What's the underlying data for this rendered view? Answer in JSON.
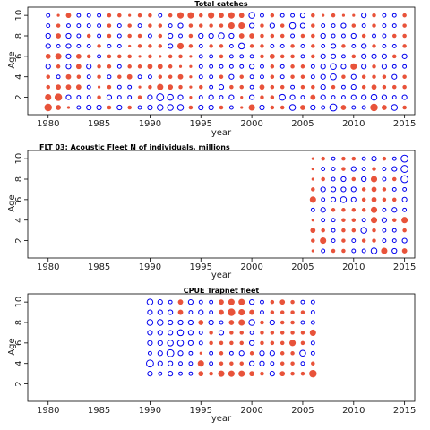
{
  "chart_data": [
    {
      "type": "scatter",
      "title": "Total catches",
      "xlabel": "year",
      "ylabel": "Age",
      "xlim": [
        1978,
        2016
      ],
      "ylim": [
        0.3,
        10.8
      ],
      "xticks": [
        1980,
        1985,
        1990,
        1995,
        2000,
        2005,
        2010,
        2015
      ],
      "yticks": [
        2,
        4,
        6,
        8,
        10
      ],
      "grid": false,
      "years": [
        1980,
        1981,
        1982,
        1983,
        1984,
        1985,
        1986,
        1987,
        1988,
        1989,
        1990,
        1991,
        1992,
        1993,
        1994,
        1995,
        1996,
        1997,
        1998,
        1999,
        2000,
        2001,
        2002,
        2003,
        2004,
        2005,
        2006,
        2007,
        2008,
        2009,
        2010,
        2011,
        2012,
        2013,
        2014,
        2015
      ],
      "ages": [
        1,
        2,
        3,
        4,
        5,
        6,
        7,
        8,
        9,
        10
      ],
      "residuals": [
        [
          0.6,
          0.4,
          0.2,
          -0.3,
          -0.4,
          -0.4,
          0.3,
          -0.4,
          0.3,
          -0.3,
          -0.4,
          -0.5,
          -0.5,
          -0.5,
          0.3,
          -0.4,
          -0.4,
          0.3,
          -0.3,
          0.2,
          0.5,
          -0.4,
          0.3,
          0.3,
          -0.5,
          0.4,
          -0.4,
          -0.3,
          -0.6,
          0.4,
          -0.3,
          -0.3,
          0.6,
          0.4,
          -0.5,
          0.3
        ],
        [
          0.5,
          0.6,
          -0.4,
          -0.3,
          -0.3,
          0.3,
          -0.4,
          -0.3,
          -0.3,
          0.3,
          -0.4,
          -0.6,
          -0.5,
          -0.4,
          0.2,
          -0.3,
          -0.4,
          -0.3,
          -0.4,
          0.2,
          -0.4,
          0.3,
          0.3,
          -0.5,
          -0.4,
          -0.3,
          0.4,
          -0.4,
          -0.3,
          -0.3,
          -0.4,
          -0.4,
          -0.5,
          -0.4,
          -0.3,
          -0.4
        ],
        [
          0.3,
          0.4,
          0.4,
          0.4,
          -0.3,
          0.2,
          0.3,
          -0.3,
          -0.3,
          0.2,
          0.3,
          0.5,
          0.4,
          0.3,
          0.2,
          0.3,
          -0.3,
          -0.4,
          0.3,
          0.3,
          -0.3,
          0.4,
          0.3,
          0.3,
          -0.3,
          0.3,
          0.3,
          -0.4,
          0.3,
          -0.3,
          -0.4,
          0.3,
          0.4,
          0.3,
          0.3,
          0.3
        ],
        [
          0.3,
          -0.3,
          0.4,
          0.3,
          -0.3,
          0.3,
          -0.3,
          0.3,
          0.4,
          -0.3,
          -0.3,
          0.3,
          0.3,
          0.4,
          0.2,
          -0.3,
          -0.3,
          0.3,
          -0.4,
          0.3,
          -0.3,
          -0.3,
          0.3,
          -0.3,
          0.3,
          0.3,
          -0.3,
          -0.4,
          -0.5,
          0.3,
          -0.4,
          0.3,
          0.3,
          0.3,
          -0.4,
          0.3
        ],
        [
          -0.4,
          0.3,
          -0.4,
          0.4,
          -0.4,
          0.3,
          0.3,
          -0.3,
          0.3,
          0.3,
          0.4,
          0.4,
          0.3,
          0.2,
          0.2,
          -0.3,
          -0.3,
          -0.3,
          -0.3,
          -0.3,
          -0.4,
          -0.3,
          0.3,
          -0.3,
          0.3,
          0.3,
          -0.3,
          -0.4,
          -0.5,
          -0.4,
          0.5,
          -0.4,
          0.3,
          -0.4,
          -0.3,
          -0.3
        ],
        [
          0.4,
          0.5,
          -0.4,
          0.4,
          0.3,
          -0.3,
          0.3,
          0.3,
          0.3,
          0.2,
          0.3,
          0.2,
          0.3,
          0.3,
          0.2,
          -0.3,
          -0.3,
          0.3,
          -0.3,
          -0.3,
          -0.3,
          0.3,
          0.4,
          0.3,
          0.3,
          -0.3,
          0.3,
          -0.4,
          -0.4,
          -0.3,
          0.3,
          -0.4,
          -0.4,
          -0.4,
          0.3,
          -0.4
        ],
        [
          -0.4,
          -0.3,
          -0.4,
          -0.3,
          -0.3,
          0.3,
          -0.3,
          -0.3,
          0.2,
          0.3,
          0.3,
          0.3,
          -0.4,
          0.5,
          0.3,
          -0.3,
          0.3,
          0.3,
          -0.3,
          -0.5,
          0.3,
          0.3,
          -0.3,
          -0.3,
          0.3,
          -0.3,
          0.3,
          -0.3,
          -0.4,
          0.3,
          -0.3,
          -0.4,
          0.3,
          -0.3,
          -0.3,
          0.3
        ],
        [
          -0.4,
          0.4,
          -0.4,
          -0.3,
          0.3,
          -0.3,
          0.3,
          -0.3,
          0.3,
          0.3,
          -0.3,
          0.3,
          -0.4,
          -0.3,
          0.3,
          -0.4,
          -0.4,
          -0.5,
          -0.4,
          0.4,
          0.4,
          0.3,
          0.3,
          0.3,
          -0.3,
          0.3,
          0.3,
          -0.4,
          -0.3,
          -0.3,
          -0.4,
          0.3,
          -0.3,
          -0.3,
          0.3,
          0.3
        ],
        [
          -0.3,
          0.3,
          -0.3,
          -0.3,
          -0.3,
          -0.3,
          0.3,
          -0.3,
          0.3,
          -0.3,
          0.3,
          0.3,
          -0.3,
          -0.4,
          0.3,
          0.3,
          0.3,
          0.3,
          0.5,
          0.5,
          -0.4,
          0.3,
          -0.4,
          0.3,
          -0.5,
          -0.4,
          0.3,
          -0.3,
          -0.3,
          -0.4,
          0.3,
          -0.3,
          0.3,
          -0.3,
          -0.3,
          0.3
        ],
        [
          -0.3,
          0.2,
          0.4,
          -0.3,
          -0.3,
          -0.3,
          0.3,
          0.3,
          0.2,
          0.3,
          0.3,
          -0.3,
          0.3,
          0.5,
          0.5,
          0.3,
          0.5,
          0.4,
          0.5,
          0.4,
          -0.5,
          -0.3,
          0.3,
          -0.3,
          -0.3,
          -0.4,
          0.3,
          0.2,
          0.3,
          0.2,
          0.2,
          -0.4,
          0.3,
          -0.3,
          -0.3,
          0.3
        ]
      ]
    },
    {
      "type": "scatter",
      "title": "FLT 03: Acoustic Fleet   N of individuals, millions",
      "xlabel": "year",
      "ylabel": "Age",
      "xlim": [
        1978,
        2016
      ],
      "ylim": [
        0.3,
        10.8
      ],
      "xticks": [
        1980,
        1985,
        1990,
        1995,
        2000,
        2005,
        2010,
        2015
      ],
      "yticks": [
        2,
        4,
        6,
        8,
        10
      ],
      "grid": false,
      "years": [
        2006,
        2007,
        2008,
        2009,
        2010,
        2011,
        2012,
        2013,
        2014,
        2015
      ],
      "ages": [
        1,
        2,
        3,
        4,
        5,
        6,
        7,
        8,
        9,
        10
      ],
      "residuals": [
        [
          0.2,
          -0.3,
          0.3,
          0.3,
          -0.3,
          -0.3,
          -0.5,
          0.5,
          -0.4,
          0.4
        ],
        [
          0.3,
          0.5,
          -0.3,
          0.3,
          -0.3,
          0.3,
          0.3,
          -0.3,
          -0.3,
          -0.4
        ],
        [
          0.4,
          0.3,
          -0.3,
          0.3,
          0.3,
          -0.5,
          0.3,
          -0.3,
          -0.3,
          0.3
        ],
        [
          0.2,
          -0.3,
          -0.3,
          0.3,
          0.3,
          -0.3,
          0.5,
          -0.4,
          0.3,
          0.5
        ],
        [
          -0.3,
          -0.4,
          0.3,
          0.3,
          0.3,
          0.3,
          0.5,
          -0.3,
          -0.4,
          -0.3
        ],
        [
          0.5,
          -0.3,
          -0.4,
          -0.5,
          -0.4,
          0.3,
          0.4,
          0.3,
          0.3,
          -0.4
        ],
        [
          0.3,
          -0.4,
          -0.4,
          -0.4,
          -0.4,
          0.3,
          0.4,
          0.3,
          -0.3,
          -0.3
        ],
        [
          0.2,
          0.3,
          -0.3,
          -0.4,
          0.3,
          -0.4,
          0.5,
          -0.3,
          0.3,
          -0.6
        ],
        [
          0.2,
          -0.3,
          -0.3,
          0.3,
          -0.4,
          -0.3,
          0.3,
          -0.3,
          -0.4,
          -0.6
        ],
        [
          0.2,
          0.3,
          -0.3,
          0.3,
          0.3,
          -0.3,
          -0.4,
          0.3,
          -0.3,
          -0.6
        ]
      ]
    },
    {
      "type": "scatter",
      "title": "CPUE Trapnet fleet",
      "xlabel": "year",
      "ylabel": "Age",
      "xlim": [
        1978,
        2016
      ],
      "ylim": [
        0.3,
        10.8
      ],
      "xticks": [
        1980,
        1985,
        1990,
        1995,
        2000,
        2005,
        2010,
        2015
      ],
      "yticks": [
        2,
        4,
        6,
        8,
        10
      ],
      "grid": false,
      "years": [
        1990,
        1991,
        1992,
        1993,
        1994,
        1995,
        1996,
        1997,
        1998,
        1999,
        2000,
        2001,
        2002,
        2003,
        2004,
        2005,
        2006
      ],
      "ages": [
        3,
        4,
        5,
        6,
        7,
        8,
        9,
        10
      ],
      "residuals": [
        [
          -0.4,
          -0.3,
          -0.4,
          -0.3,
          -0.3,
          0.4,
          0.3,
          0.5,
          0.5,
          0.5,
          0.4,
          0.3,
          -0.4,
          0.4,
          0.3,
          0.3,
          0.6
        ],
        [
          -0.6,
          -0.4,
          -0.4,
          -0.3,
          -0.3,
          0.5,
          -0.3,
          0.3,
          0.3,
          0.3,
          -0.4,
          -0.4,
          -0.3,
          0.3,
          0.3,
          -0.3,
          0.3
        ],
        [
          -0.3,
          -0.4,
          -0.6,
          -0.4,
          -0.3,
          0.2,
          -0.3,
          0.3,
          -0.3,
          -0.4,
          0.3,
          -0.4,
          -0.4,
          0.3,
          0.3,
          -0.5,
          -0.3
        ],
        [
          -0.4,
          -0.4,
          -0.5,
          -0.5,
          -0.4,
          -0.3,
          0.3,
          0.3,
          0.3,
          0.3,
          -0.4,
          0.3,
          0.3,
          0.3,
          0.5,
          0.3,
          -0.3
        ],
        [
          -0.4,
          -0.4,
          -0.4,
          -0.5,
          -0.4,
          -0.3,
          0.3,
          -0.4,
          0.3,
          0.3,
          -0.3,
          0.3,
          0.3,
          0.3,
          0.3,
          0.3,
          0.5
        ],
        [
          -0.5,
          -0.5,
          -0.4,
          -0.4,
          -0.4,
          0.4,
          -0.4,
          -0.3,
          0.4,
          0.5,
          -0.5,
          0.3,
          -0.4,
          0.3,
          0.3,
          -0.3,
          -0.3
        ],
        [
          -0.4,
          -0.4,
          -0.4,
          0.4,
          -0.3,
          -0.4,
          -0.3,
          0.4,
          0.6,
          0.5,
          0.4,
          -0.3,
          0.3,
          0.3,
          0.3,
          0.3,
          -0.3
        ],
        [
          -0.5,
          -0.4,
          -0.3,
          0.4,
          -0.4,
          -0.3,
          -0.3,
          0.4,
          0.5,
          0.5,
          -0.4,
          -0.3,
          0.3,
          0.4,
          0.3,
          -0.3,
          -0.3
        ]
      ]
    }
  ],
  "colors": {
    "negative": "#0000ee",
    "positive": "#e8533a",
    "frame": "#000000"
  }
}
